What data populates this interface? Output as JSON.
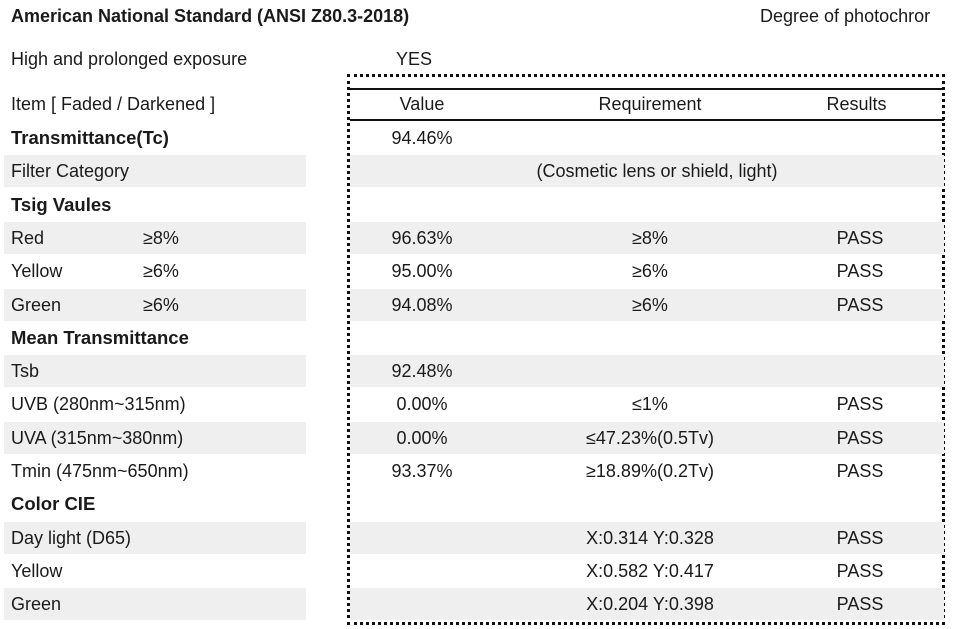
{
  "header": {
    "title": "American National Standard (ANSI Z80.3-2018)",
    "degree": "Degree of photochror"
  },
  "exposure": {
    "label": "High and prolonged exposure",
    "value": "YES"
  },
  "columns": {
    "item": "Item [ Faded / Darkened ]",
    "value": "Value",
    "requirement": "Requirement",
    "results": "Results"
  },
  "rows": [
    {
      "label": "Transmittance(Tc)",
      "bold": true,
      "shaded": false,
      "threshold": "",
      "value": "94.46%",
      "requirement": "",
      "result": ""
    },
    {
      "label": "Filter Category",
      "bold": false,
      "shaded": true,
      "threshold": "",
      "value": "",
      "requirement": "(Cosmetic lens or shield, light)",
      "result": "",
      "span": true
    },
    {
      "label": "Tsig Vaules",
      "bold": true,
      "shaded": false,
      "threshold": "",
      "value": "",
      "requirement": "",
      "result": ""
    },
    {
      "label": "Red",
      "bold": false,
      "shaded": true,
      "threshold": "≥8%",
      "value": "96.63%",
      "requirement": "≥8%",
      "result": "PASS"
    },
    {
      "label": "Yellow",
      "bold": false,
      "shaded": false,
      "threshold": "≥6%",
      "value": "95.00%",
      "requirement": "≥6%",
      "result": "PASS"
    },
    {
      "label": "Green",
      "bold": false,
      "shaded": true,
      "threshold": "≥6%",
      "value": "94.08%",
      "requirement": "≥6%",
      "result": "PASS"
    },
    {
      "label": "Mean Transmittance",
      "bold": true,
      "shaded": false,
      "threshold": "",
      "value": "",
      "requirement": "",
      "result": ""
    },
    {
      "label": "Tsb",
      "bold": false,
      "shaded": true,
      "threshold": "",
      "value": "92.48%",
      "requirement": "",
      "result": ""
    },
    {
      "label": "UVB  (280nm~315nm)",
      "bold": false,
      "shaded": false,
      "threshold": "",
      "value": "0.00%",
      "requirement": "≤1%",
      "result": "PASS"
    },
    {
      "label": "UVA  (315nm~380nm)",
      "bold": false,
      "shaded": true,
      "threshold": "",
      "value": "0.00%",
      "requirement": "≤47.23%(0.5Tv)",
      "result": "PASS"
    },
    {
      "label": "Tmin (475nm~650nm)",
      "bold": false,
      "shaded": false,
      "threshold": "",
      "value": "93.37%",
      "requirement": "≥18.89%(0.2Tv)",
      "result": "PASS"
    },
    {
      "label": "Color CIE",
      "bold": true,
      "shaded": false,
      "threshold": "",
      "value": "",
      "requirement": "",
      "result": ""
    },
    {
      "label": "Day light    (D65)",
      "bold": false,
      "shaded": true,
      "threshold": "",
      "value": "",
      "requirement": "X:0.314  Y:0.328",
      "result": "PASS"
    },
    {
      "label": "Yellow",
      "bold": false,
      "shaded": false,
      "threshold": "",
      "value": "",
      "requirement": "X:0.582  Y:0.417",
      "result": "PASS"
    },
    {
      "label": "Green",
      "bold": false,
      "shaded": true,
      "threshold": "",
      "value": "",
      "requirement": "X:0.204  Y:0.398",
      "result": "PASS"
    }
  ]
}
